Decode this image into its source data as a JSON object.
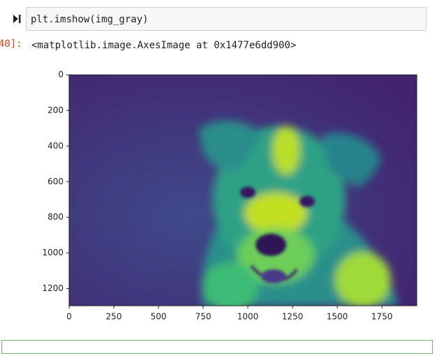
{
  "notebook": {
    "input_code": "plt.imshow(img_gray)",
    "prompt": "40]:",
    "output_text": "<matplotlib.image.AxesImage at 0x1477e6dd900>"
  },
  "chart_data": {
    "type": "image",
    "xlim": [
      0,
      1945
    ],
    "ylim": [
      1296,
      0
    ],
    "xticks": [
      0,
      250,
      500,
      750,
      1000,
      1250,
      1500,
      1750
    ],
    "yticks": [
      0,
      200,
      400,
      600,
      800,
      1000,
      1200
    ],
    "colormap": "viridis"
  }
}
